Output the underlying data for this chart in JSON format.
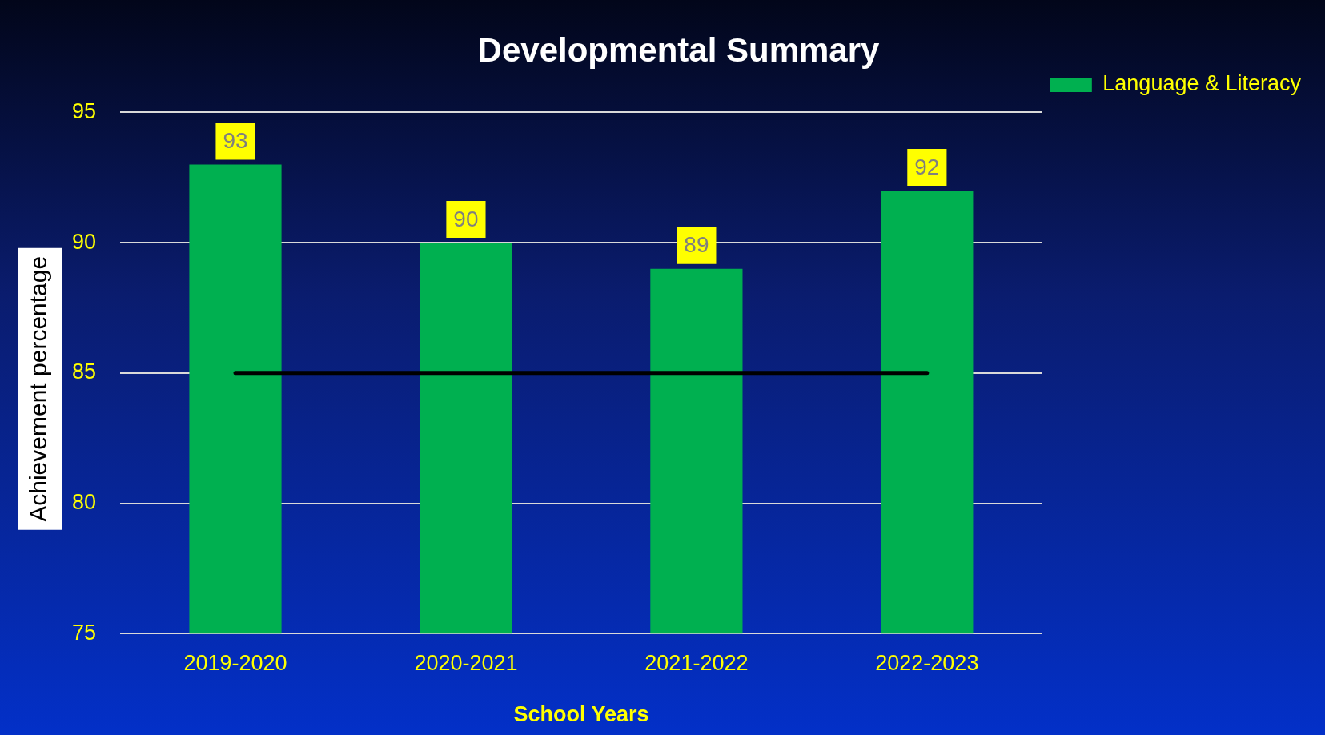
{
  "chart_data": {
    "type": "bar",
    "title": "Developmental Summary",
    "xlabel": "School Years",
    "ylabel": "Achievement percentage",
    "categories": [
      "2019-2020",
      "2020-2021",
      "2021-2022",
      "2022-2023"
    ],
    "series": [
      {
        "name": "Language & Literacy",
        "color": "#00b050",
        "values": [
          93,
          90,
          89,
          92
        ],
        "value_labels": [
          "93",
          "90",
          "89",
          "92"
        ]
      },
      {
        "type": "line",
        "color": "#000000",
        "values": [
          85,
          85,
          85,
          85
        ]
      }
    ],
    "ylim": [
      75,
      95
    ],
    "yticks": [
      75,
      80,
      85,
      90,
      95
    ],
    "grid": "y",
    "legend": "top right",
    "marker": "none",
    "line_style": "solid"
  }
}
